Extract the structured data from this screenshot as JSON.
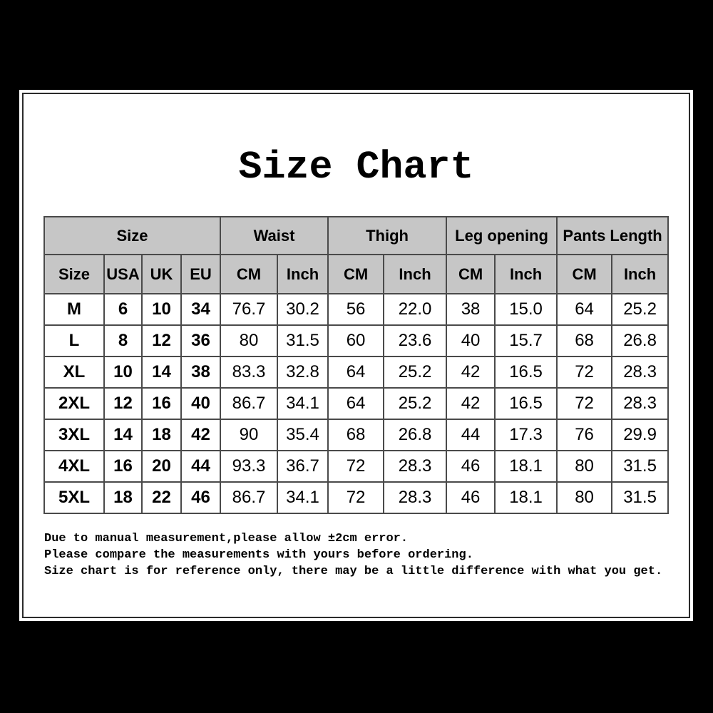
{
  "title": "Size Chart",
  "chart_data": {
    "type": "table",
    "title": "Size Chart",
    "column_groups": [
      {
        "label": "Size",
        "colspan": 4
      },
      {
        "label": "Waist",
        "colspan": 2
      },
      {
        "label": "Thigh",
        "colspan": 2
      },
      {
        "label": "Leg opening",
        "colspan": 2
      },
      {
        "label": "Pants Length",
        "colspan": 2
      }
    ],
    "columns": [
      "Size",
      "USA",
      "UK",
      "EU",
      "CM",
      "Inch",
      "CM",
      "Inch",
      "CM",
      "Inch",
      "CM",
      "Inch"
    ],
    "rows": [
      [
        "M",
        "6",
        "10",
        "34",
        "76.7",
        "30.2",
        "56",
        "22.0",
        "38",
        "15.0",
        "64",
        "25.2"
      ],
      [
        "L",
        "8",
        "12",
        "36",
        "80",
        "31.5",
        "60",
        "23.6",
        "40",
        "15.7",
        "68",
        "26.8"
      ],
      [
        "XL",
        "10",
        "14",
        "38",
        "83.3",
        "32.8",
        "64",
        "25.2",
        "42",
        "16.5",
        "72",
        "28.3"
      ],
      [
        "2XL",
        "12",
        "16",
        "40",
        "86.7",
        "34.1",
        "64",
        "25.2",
        "42",
        "16.5",
        "72",
        "28.3"
      ],
      [
        "3XL",
        "14",
        "18",
        "42",
        "90",
        "35.4",
        "68",
        "26.8",
        "44",
        "17.3",
        "76",
        "29.9"
      ],
      [
        "4XL",
        "16",
        "20",
        "44",
        "93.3",
        "36.7",
        "72",
        "28.3",
        "46",
        "18.1",
        "80",
        "31.5"
      ],
      [
        "5XL",
        "18",
        "22",
        "46",
        "86.7",
        "34.1",
        "72",
        "28.3",
        "46",
        "18.1",
        "80",
        "31.5"
      ]
    ]
  },
  "notes": [
    "Due to manual measurement,please allow ±2cm error.",
    "Please compare the measurements with yours before ordering.",
    "Size chart is for reference only, there may be a little difference with what you get."
  ],
  "colors": {
    "frame_black": "#000000",
    "content_bg": "#ffffff",
    "border_dark": "#2b2b2b",
    "grid_line": "#4a4a4a",
    "header_bg": "#c6c6c6",
    "text": "#000000"
  }
}
